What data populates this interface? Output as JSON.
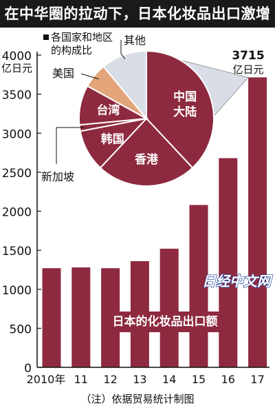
{
  "title": "在中华圈的拉动下，日本化妆品出口激增",
  "note": "（注）依据贸易统计制图",
  "watermark": "日经中文网",
  "colors": {
    "bar": "#8e2a40",
    "pie_light": "#d8dde6",
    "pie_orange": "#e3a47a",
    "text": "#111111"
  },
  "chart_data": [
    {
      "type": "bar",
      "categories": [
        "2010年",
        "11",
        "12",
        "13",
        "14",
        "15",
        "16",
        "17"
      ],
      "values": [
        1270,
        1280,
        1270,
        1360,
        1520,
        2080,
        2680,
        3715
      ],
      "ylabel_unit": "亿日元",
      "ylim": [
        0,
        4000
      ],
      "yticks": [
        0,
        500,
        1000,
        1500,
        2000,
        2500,
        3000,
        3500,
        4000
      ],
      "series_label": "日本的化妆品出口额",
      "annotation": {
        "value": "3715",
        "unit": "亿日元"
      },
      "grid": false
    },
    {
      "type": "pie",
      "title": "各国家和地区的构成比",
      "slices": [
        {
          "label": "中国大陆",
          "value": 38,
          "color": "#8e2a40",
          "label_lines": [
            "中国",
            "大陆"
          ]
        },
        {
          "label": "香港",
          "value": 24,
          "color": "#8e2a40"
        },
        {
          "label": "韩国",
          "value": 10,
          "color": "#8e2a40"
        },
        {
          "label": "新加坡",
          "value": 1.5,
          "color": "#8e2a40"
        },
        {
          "label": "台湾",
          "value": 9.5,
          "color": "#8e2a40"
        },
        {
          "label": "美国",
          "value": 6,
          "color": "#e3a47a"
        },
        {
          "label": "其他",
          "value": 11,
          "color": "#d8dde6"
        }
      ]
    }
  ]
}
